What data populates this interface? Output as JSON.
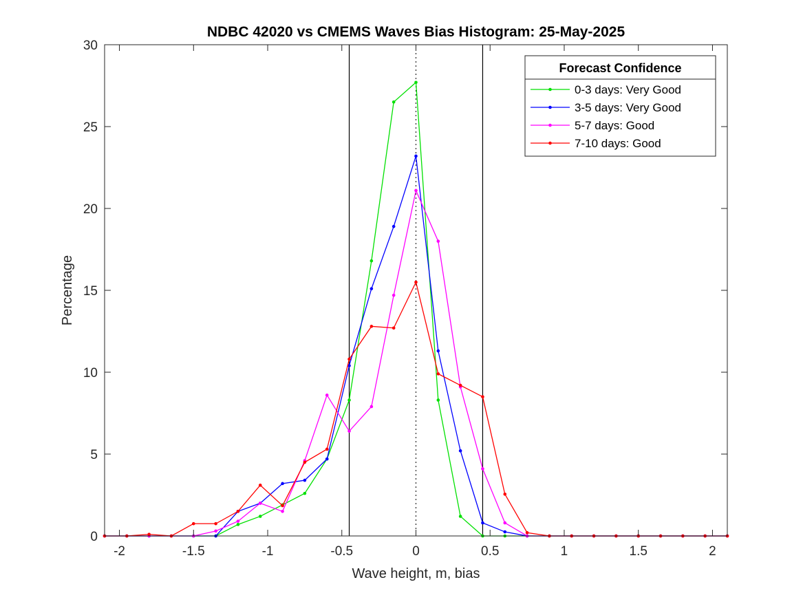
{
  "chart_data": {
    "type": "line",
    "title": "NDBC 42020 vs CMEMS Waves Bias Histogram: 25-May-2025",
    "xlabel": "Wave height, m, bias",
    "ylabel": "Percentage",
    "xlim": [
      -2.1,
      2.1
    ],
    "ylim": [
      0,
      30
    ],
    "xticks": [
      -2,
      -1.5,
      -1,
      -0.5,
      0,
      0.5,
      1,
      1.5,
      2
    ],
    "xtick_labels": [
      "-2",
      "-1.5",
      "-1",
      "-0.5",
      "0",
      "0.5",
      "1",
      "1.5",
      "2"
    ],
    "yticks": [
      0,
      5,
      10,
      15,
      20,
      25,
      30
    ],
    "ytick_labels": [
      "0",
      "5",
      "10",
      "15",
      "20",
      "25",
      "30"
    ],
    "reference_lines": {
      "solid_x": [
        -0.45,
        0.45
      ],
      "dotted_x": [
        0
      ]
    },
    "legend": {
      "title": "Forecast Confidence",
      "location": "top-right"
    },
    "x": [
      -2.1,
      -1.95,
      -1.8,
      -1.65,
      -1.5,
      -1.35,
      -1.2,
      -1.05,
      -0.9,
      -0.75,
      -0.6,
      -0.45,
      -0.3,
      -0.15,
      0,
      0.15,
      0.3,
      0.45,
      0.6,
      0.75,
      0.9,
      1.05,
      1.2,
      1.35,
      1.5,
      1.65,
      1.8,
      1.95,
      2.1
    ],
    "series": [
      {
        "name": "0-3 days: Very Good",
        "color": "#00e000",
        "values": [
          0,
          0,
          0,
          0,
          0,
          0,
          0.7,
          1.2,
          1.9,
          2.6,
          4.7,
          8.3,
          16.8,
          26.5,
          27.7,
          8.3,
          1.2,
          0,
          0,
          0,
          0,
          0,
          0,
          0,
          0,
          0,
          0,
          0,
          0
        ]
      },
      {
        "name": "3-5 days: Very Good",
        "color": "#0000ff",
        "values": [
          0,
          0,
          0,
          0,
          0,
          0,
          1.5,
          2.0,
          3.2,
          3.4,
          4.7,
          10.4,
          15.1,
          18.9,
          23.2,
          11.3,
          5.2,
          0.8,
          0.25,
          0,
          0,
          0,
          0,
          0,
          0,
          0,
          0,
          0,
          0
        ]
      },
      {
        "name": "5-7 days: Good",
        "color": "#ff00ff",
        "values": [
          0,
          0,
          0,
          0,
          0,
          0.3,
          0.9,
          2.0,
          1.5,
          4.6,
          8.6,
          6.4,
          7.9,
          14.7,
          21.1,
          18.0,
          9.1,
          4.1,
          0.8,
          0,
          0,
          0,
          0,
          0,
          0,
          0,
          0,
          0,
          0
        ]
      },
      {
        "name": "7-10 days: Good",
        "color": "#ff0000",
        "values": [
          0,
          0,
          0.1,
          0,
          0.75,
          0.75,
          1.5,
          3.1,
          1.85,
          4.5,
          5.3,
          10.8,
          12.8,
          12.7,
          15.5,
          9.9,
          9.2,
          8.5,
          2.55,
          0.2,
          0,
          0,
          0,
          0,
          0,
          0,
          0,
          0,
          0
        ]
      }
    ]
  }
}
